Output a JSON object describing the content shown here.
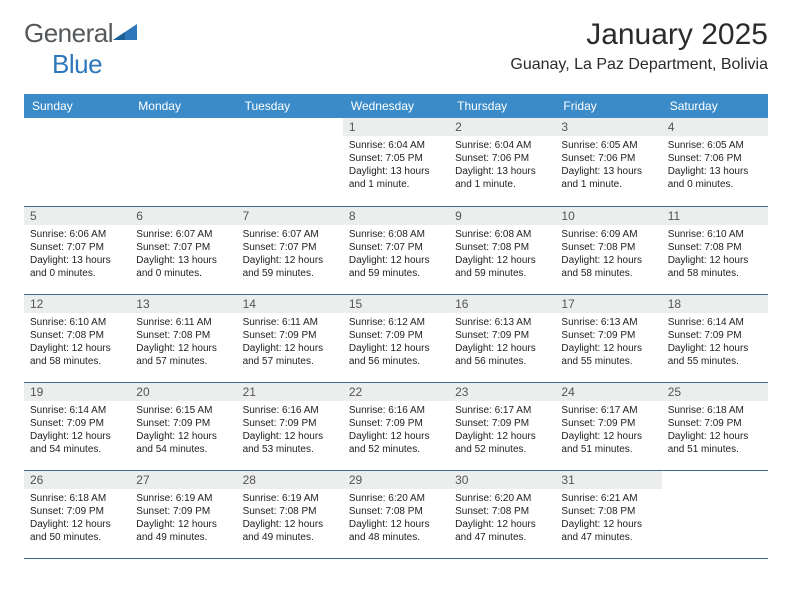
{
  "brand": {
    "part1": "General",
    "part2": "Blue"
  },
  "title": "January 2025",
  "subtitle": "Guanay, La Paz Department, Bolivia",
  "colors": {
    "header_bg": "#3b8bc9",
    "header_text": "#ffffff",
    "daynum_bg": "#eceeee",
    "border": "#3b6a93",
    "brand_gray": "#55595c",
    "brand_blue": "#2f77bb"
  },
  "weekdays": [
    "Sunday",
    "Monday",
    "Tuesday",
    "Wednesday",
    "Thursday",
    "Friday",
    "Saturday"
  ],
  "typography": {
    "title_fontsize": 30,
    "subtitle_fontsize": 16,
    "weekday_fontsize": 12,
    "daynum_fontsize": 12,
    "info_fontsize": 10
  },
  "weeks": [
    [
      {
        "empty": true
      },
      {
        "empty": true
      },
      {
        "empty": true
      },
      {
        "n": "1",
        "sunrise": "Sunrise: 6:04 AM",
        "sunset": "Sunset: 7:05 PM",
        "daylight": "Daylight: 13 hours and 1 minute."
      },
      {
        "n": "2",
        "sunrise": "Sunrise: 6:04 AM",
        "sunset": "Sunset: 7:06 PM",
        "daylight": "Daylight: 13 hours and 1 minute."
      },
      {
        "n": "3",
        "sunrise": "Sunrise: 6:05 AM",
        "sunset": "Sunset: 7:06 PM",
        "daylight": "Daylight: 13 hours and 1 minute."
      },
      {
        "n": "4",
        "sunrise": "Sunrise: 6:05 AM",
        "sunset": "Sunset: 7:06 PM",
        "daylight": "Daylight: 13 hours and 0 minutes."
      }
    ],
    [
      {
        "n": "5",
        "sunrise": "Sunrise: 6:06 AM",
        "sunset": "Sunset: 7:07 PM",
        "daylight": "Daylight: 13 hours and 0 minutes."
      },
      {
        "n": "6",
        "sunrise": "Sunrise: 6:07 AM",
        "sunset": "Sunset: 7:07 PM",
        "daylight": "Daylight: 13 hours and 0 minutes."
      },
      {
        "n": "7",
        "sunrise": "Sunrise: 6:07 AM",
        "sunset": "Sunset: 7:07 PM",
        "daylight": "Daylight: 12 hours and 59 minutes."
      },
      {
        "n": "8",
        "sunrise": "Sunrise: 6:08 AM",
        "sunset": "Sunset: 7:07 PM",
        "daylight": "Daylight: 12 hours and 59 minutes."
      },
      {
        "n": "9",
        "sunrise": "Sunrise: 6:08 AM",
        "sunset": "Sunset: 7:08 PM",
        "daylight": "Daylight: 12 hours and 59 minutes."
      },
      {
        "n": "10",
        "sunrise": "Sunrise: 6:09 AM",
        "sunset": "Sunset: 7:08 PM",
        "daylight": "Daylight: 12 hours and 58 minutes."
      },
      {
        "n": "11",
        "sunrise": "Sunrise: 6:10 AM",
        "sunset": "Sunset: 7:08 PM",
        "daylight": "Daylight: 12 hours and 58 minutes."
      }
    ],
    [
      {
        "n": "12",
        "sunrise": "Sunrise: 6:10 AM",
        "sunset": "Sunset: 7:08 PM",
        "daylight": "Daylight: 12 hours and 58 minutes."
      },
      {
        "n": "13",
        "sunrise": "Sunrise: 6:11 AM",
        "sunset": "Sunset: 7:08 PM",
        "daylight": "Daylight: 12 hours and 57 minutes."
      },
      {
        "n": "14",
        "sunrise": "Sunrise: 6:11 AM",
        "sunset": "Sunset: 7:09 PM",
        "daylight": "Daylight: 12 hours and 57 minutes."
      },
      {
        "n": "15",
        "sunrise": "Sunrise: 6:12 AM",
        "sunset": "Sunset: 7:09 PM",
        "daylight": "Daylight: 12 hours and 56 minutes."
      },
      {
        "n": "16",
        "sunrise": "Sunrise: 6:13 AM",
        "sunset": "Sunset: 7:09 PM",
        "daylight": "Daylight: 12 hours and 56 minutes."
      },
      {
        "n": "17",
        "sunrise": "Sunrise: 6:13 AM",
        "sunset": "Sunset: 7:09 PM",
        "daylight": "Daylight: 12 hours and 55 minutes."
      },
      {
        "n": "18",
        "sunrise": "Sunrise: 6:14 AM",
        "sunset": "Sunset: 7:09 PM",
        "daylight": "Daylight: 12 hours and 55 minutes."
      }
    ],
    [
      {
        "n": "19",
        "sunrise": "Sunrise: 6:14 AM",
        "sunset": "Sunset: 7:09 PM",
        "daylight": "Daylight: 12 hours and 54 minutes."
      },
      {
        "n": "20",
        "sunrise": "Sunrise: 6:15 AM",
        "sunset": "Sunset: 7:09 PM",
        "daylight": "Daylight: 12 hours and 54 minutes."
      },
      {
        "n": "21",
        "sunrise": "Sunrise: 6:16 AM",
        "sunset": "Sunset: 7:09 PM",
        "daylight": "Daylight: 12 hours and 53 minutes."
      },
      {
        "n": "22",
        "sunrise": "Sunrise: 6:16 AM",
        "sunset": "Sunset: 7:09 PM",
        "daylight": "Daylight: 12 hours and 52 minutes."
      },
      {
        "n": "23",
        "sunrise": "Sunrise: 6:17 AM",
        "sunset": "Sunset: 7:09 PM",
        "daylight": "Daylight: 12 hours and 52 minutes."
      },
      {
        "n": "24",
        "sunrise": "Sunrise: 6:17 AM",
        "sunset": "Sunset: 7:09 PM",
        "daylight": "Daylight: 12 hours and 51 minutes."
      },
      {
        "n": "25",
        "sunrise": "Sunrise: 6:18 AM",
        "sunset": "Sunset: 7:09 PM",
        "daylight": "Daylight: 12 hours and 51 minutes."
      }
    ],
    [
      {
        "n": "26",
        "sunrise": "Sunrise: 6:18 AM",
        "sunset": "Sunset: 7:09 PM",
        "daylight": "Daylight: 12 hours and 50 minutes."
      },
      {
        "n": "27",
        "sunrise": "Sunrise: 6:19 AM",
        "sunset": "Sunset: 7:09 PM",
        "daylight": "Daylight: 12 hours and 49 minutes."
      },
      {
        "n": "28",
        "sunrise": "Sunrise: 6:19 AM",
        "sunset": "Sunset: 7:08 PM",
        "daylight": "Daylight: 12 hours and 49 minutes."
      },
      {
        "n": "29",
        "sunrise": "Sunrise: 6:20 AM",
        "sunset": "Sunset: 7:08 PM",
        "daylight": "Daylight: 12 hours and 48 minutes."
      },
      {
        "n": "30",
        "sunrise": "Sunrise: 6:20 AM",
        "sunset": "Sunset: 7:08 PM",
        "daylight": "Daylight: 12 hours and 47 minutes."
      },
      {
        "n": "31",
        "sunrise": "Sunrise: 6:21 AM",
        "sunset": "Sunset: 7:08 PM",
        "daylight": "Daylight: 12 hours and 47 minutes."
      },
      {
        "empty": true
      }
    ]
  ]
}
